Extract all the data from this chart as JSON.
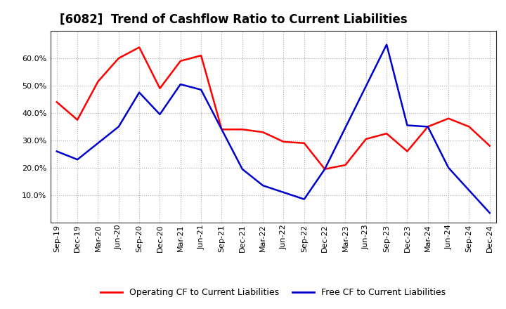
{
  "title": "[6082]  Trend of Cashflow Ratio to Current Liabilities",
  "x_labels": [
    "Sep-19",
    "Dec-19",
    "Mar-20",
    "Jun-20",
    "Sep-20",
    "Dec-20",
    "Mar-21",
    "Jun-21",
    "Sep-21",
    "Dec-21",
    "Mar-22",
    "Jun-22",
    "Sep-22",
    "Dec-22",
    "Mar-23",
    "Jun-23",
    "Sep-23",
    "Dec-23",
    "Mar-24",
    "Jun-24",
    "Sep-24",
    "Dec-24"
  ],
  "operating_cf": [
    44.0,
    37.5,
    51.5,
    60.0,
    64.0,
    49.0,
    59.0,
    61.0,
    34.0,
    34.0,
    33.0,
    29.5,
    29.0,
    19.5,
    21.0,
    30.5,
    32.5,
    26.0,
    35.0,
    38.0,
    35.0,
    28.0
  ],
  "free_cf": [
    26.0,
    23.0,
    null,
    35.0,
    47.5,
    39.5,
    50.5,
    48.5,
    34.0,
    19.5,
    13.5,
    null,
    8.5,
    19.5,
    null,
    null,
    65.0,
    35.5,
    35.0,
    20.0,
    null,
    3.5
  ],
  "operating_color": "#ff0000",
  "free_color": "#0000cc",
  "background_color": "#ffffff",
  "plot_bg_color": "#ffffff",
  "grid_color": "#aaaaaa",
  "ylim": [
    0,
    70
  ],
  "yticks": [
    10,
    20,
    30,
    40,
    50,
    60
  ],
  "legend_operating": "Operating CF to Current Liabilities",
  "legend_free": "Free CF to Current Liabilities",
  "title_fontsize": 12,
  "tick_fontsize": 8,
  "legend_fontsize": 9
}
